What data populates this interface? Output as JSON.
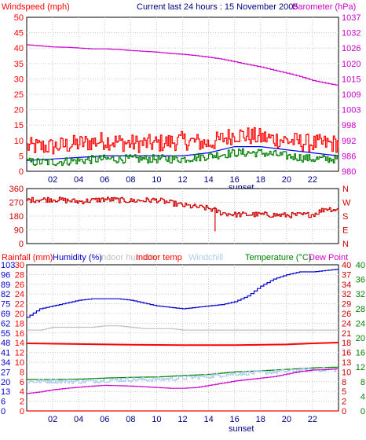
{
  "chart_data": [
    {
      "type": "line",
      "left_axis_title": "Windspeed (mph)",
      "title": "Current last 24 hours : 15 November 2005",
      "right_axis_title": "Barometer (hPa)",
      "x_ticks": [
        "02",
        "04",
        "06",
        "08",
        "10",
        "12",
        "14",
        "16",
        "18",
        "20",
        "22"
      ],
      "x_annotation": "sunset",
      "y_left": {
        "min": 0,
        "max": 50,
        "ticks": [
          50,
          45,
          40,
          35,
          30,
          25,
          20,
          15,
          10,
          5,
          0
        ],
        "color": "#ff0000"
      },
      "y_right": {
        "min": 980,
        "max": 1037,
        "ticks": [
          1037,
          1032,
          1026,
          1020,
          1015,
          1009,
          1003,
          998,
          992,
          986,
          980
        ],
        "color": "#cc00cc"
      },
      "series": [
        {
          "name": "Barometer",
          "axis": "right",
          "color": "#cc00cc",
          "x": [
            0,
            1,
            2,
            3,
            4,
            5,
            6,
            7,
            8,
            9,
            10,
            11,
            12,
            13,
            14,
            15,
            16,
            17,
            18,
            19,
            20,
            21,
            22,
            23,
            24
          ],
          "y": [
            1026.8,
            1026.4,
            1026.0,
            1025.9,
            1025.6,
            1025.3,
            1025.3,
            1025.1,
            1024.7,
            1024.4,
            1024.1,
            1023.6,
            1023.3,
            1022.8,
            1022.2,
            1021.5,
            1020.5,
            1019.5,
            1018.6,
            1017.4,
            1016.3,
            1015.1,
            1013.6,
            1012.6,
            1011.7
          ]
        },
        {
          "name": "Wind gust",
          "axis": "left",
          "color": "#ff0000",
          "style": "noisy",
          "x": [
            0,
            2,
            4,
            6,
            8,
            10,
            12,
            14,
            16,
            18,
            20,
            22,
            24
          ],
          "y": [
            8,
            8,
            9,
            10,
            9,
            9,
            10,
            9,
            12,
            11,
            10,
            9,
            9
          ],
          "noise": 3
        },
        {
          "name": "Average wind",
          "axis": "left",
          "color": "#0000ff",
          "x": [
            0,
            2,
            4,
            6,
            8,
            10,
            12,
            14,
            16,
            18,
            20,
            22,
            24
          ],
          "y": [
            3.5,
            4,
            4.5,
            5,
            5,
            5,
            5,
            6,
            8,
            8,
            7,
            6,
            5
          ]
        },
        {
          "name": "Wind low",
          "axis": "left",
          "color": "#008000",
          "style": "noisy",
          "x": [
            0,
            2,
            4,
            6,
            8,
            10,
            12,
            14,
            16,
            18,
            20,
            22,
            24
          ],
          "y": [
            3,
            3,
            3.5,
            4,
            4,
            4,
            4,
            5,
            6,
            6,
            5,
            4,
            4
          ],
          "noise": 1.4
        }
      ]
    },
    {
      "type": "line",
      "y_left": {
        "min": 0,
        "max": 360,
        "ticks": [
          360,
          270,
          180,
          90,
          0
        ]
      },
      "y_right_labels": [
        "N",
        "W",
        "S",
        "E",
        "N"
      ],
      "series": [
        {
          "name": "Wind direction",
          "color": "#cc0000",
          "style": "noisy",
          "x": [
            0,
            2,
            4,
            6,
            8,
            10,
            12,
            14,
            15,
            16,
            18,
            20,
            22,
            23,
            24
          ],
          "y": [
            285,
            290,
            275,
            290,
            280,
            285,
            250,
            230,
            200,
            190,
            190,
            185,
            190,
            230,
            220
          ],
          "noise": 18
        }
      ]
    },
    {
      "type": "line",
      "legend": [
        {
          "label": "Rainfall (mm)",
          "color": "#ff0000"
        },
        {
          "label": "Humidity (%)",
          "color": "#0000cc"
        },
        {
          "label": "Indoor humidity",
          "color": "#c0c0c0"
        },
        {
          "label": "Indoor temp",
          "color": "#ff0000"
        },
        {
          "label": "Windchill",
          "color": "#aaccee"
        },
        {
          "label": "Temperature (°C)",
          "color": "#008000"
        },
        {
          "label": "Dew Point",
          "color": "#cc00cc"
        }
      ],
      "x_ticks": [
        "02",
        "04",
        "06",
        "08",
        "10",
        "12",
        "14",
        "16",
        "18",
        "20",
        "22"
      ],
      "x_annotation": "sunset",
      "y_left1": {
        "min": 0,
        "max": 103,
        "ticks": [
          103,
          96,
          89,
          82,
          75,
          69,
          62,
          55,
          48,
          41,
          34,
          27,
          20,
          13,
          6,
          0
        ],
        "color": "#0000cc"
      },
      "y_left2": {
        "min": 0,
        "max": 30,
        "ticks": [
          30,
          28,
          26,
          24,
          22,
          20,
          18,
          16,
          14,
          12,
          10,
          8,
          6,
          4,
          2,
          0
        ],
        "color": "#ff0000"
      },
      "y_right1": {
        "min": 0,
        "max": 40,
        "ticks": [
          40,
          37,
          34,
          32,
          29,
          26,
          24,
          21,
          18,
          16,
          13,
          10,
          8,
          5,
          2,
          0
        ],
        "color": "#cc0000"
      },
      "y_right2": {
        "min": 0,
        "max": 40,
        "ticks": [
          40,
          36,
          32,
          28,
          24,
          20,
          16,
          12,
          8,
          4,
          0
        ],
        "color": "#008000"
      },
      "series": [
        {
          "name": "Humidity",
          "axis": "left1",
          "color": "#0000cc",
          "x": [
            0,
            1,
            2,
            3,
            4,
            5,
            6,
            7,
            8,
            9,
            10,
            11,
            12,
            13,
            14,
            15,
            16,
            17,
            18,
            19,
            20,
            21,
            22,
            23,
            24
          ],
          "y": [
            66,
            72,
            74,
            76,
            78,
            79,
            79,
            79,
            78,
            76,
            74,
            73,
            72,
            73,
            74,
            75,
            77,
            81,
            88,
            93,
            96,
            98,
            98,
            99,
            100
          ]
        },
        {
          "name": "Indoor humidity",
          "axis": "left1",
          "color": "#c0c0c0",
          "x": [
            0,
            1,
            2,
            3,
            4,
            5,
            6,
            7,
            8,
            9,
            10,
            11,
            12,
            13,
            14,
            15,
            16,
            17,
            18,
            19,
            20,
            21,
            22,
            23,
            24
          ],
          "y": [
            57,
            57,
            59,
            59,
            59,
            59,
            60,
            60,
            59,
            58,
            58,
            58,
            57,
            57,
            57,
            57,
            57,
            57,
            57,
            57,
            57,
            57,
            57,
            57,
            57
          ]
        },
        {
          "name": "Indoor temp",
          "axis": "right1",
          "color": "#ff0000",
          "x": [
            0,
            4,
            8,
            12,
            16,
            20,
            22,
            24
          ],
          "y": [
            18.5,
            18.3,
            18.1,
            18.0,
            18.0,
            18.2,
            18.5,
            18.7
          ]
        },
        {
          "name": "Temperature",
          "axis": "right1",
          "color": "#008000",
          "x": [
            0,
            2,
            4,
            6,
            8,
            10,
            12,
            14,
            16,
            18,
            20,
            22,
            24
          ],
          "y": [
            8.6,
            8.6,
            8.7,
            9.0,
            9.2,
            9.3,
            9.7,
            10.0,
            10.7,
            11.0,
            11.4,
            11.8,
            12.0
          ]
        },
        {
          "name": "Windchill",
          "axis": "right1",
          "color": "#aaccee",
          "style": "noisy",
          "x": [
            0,
            2,
            4,
            6,
            8,
            10,
            12,
            14,
            16,
            18,
            20,
            22,
            24
          ],
          "y": [
            8.0,
            8.2,
            8.0,
            8.4,
            8.6,
            8.6,
            9.0,
            9.5,
            10.2,
            10.5,
            10.9,
            11.3,
            11.4
          ],
          "noise": 0.6
        },
        {
          "name": "Dew Point",
          "axis": "right1",
          "color": "#cc00cc",
          "x": [
            0,
            1,
            2,
            3,
            4,
            5,
            6,
            7,
            8,
            9,
            10,
            11,
            12,
            13,
            14,
            15,
            16,
            17,
            18,
            19,
            20,
            21,
            22,
            23,
            24
          ],
          "y": [
            4.8,
            5.2,
            5.8,
            6.2,
            6.5,
            6.8,
            7.0,
            6.9,
            6.8,
            6.6,
            6.4,
            6.2,
            6.2,
            6.4,
            7.0,
            7.6,
            8.2,
            8.6,
            9.0,
            9.4,
            10.1,
            10.8,
            11.2,
            11.3,
            11.6
          ]
        },
        {
          "name": "Rainfall",
          "axis": "left2",
          "color": "#ff0000",
          "x": [
            0,
            24
          ],
          "y": [
            0,
            0
          ]
        }
      ]
    }
  ]
}
